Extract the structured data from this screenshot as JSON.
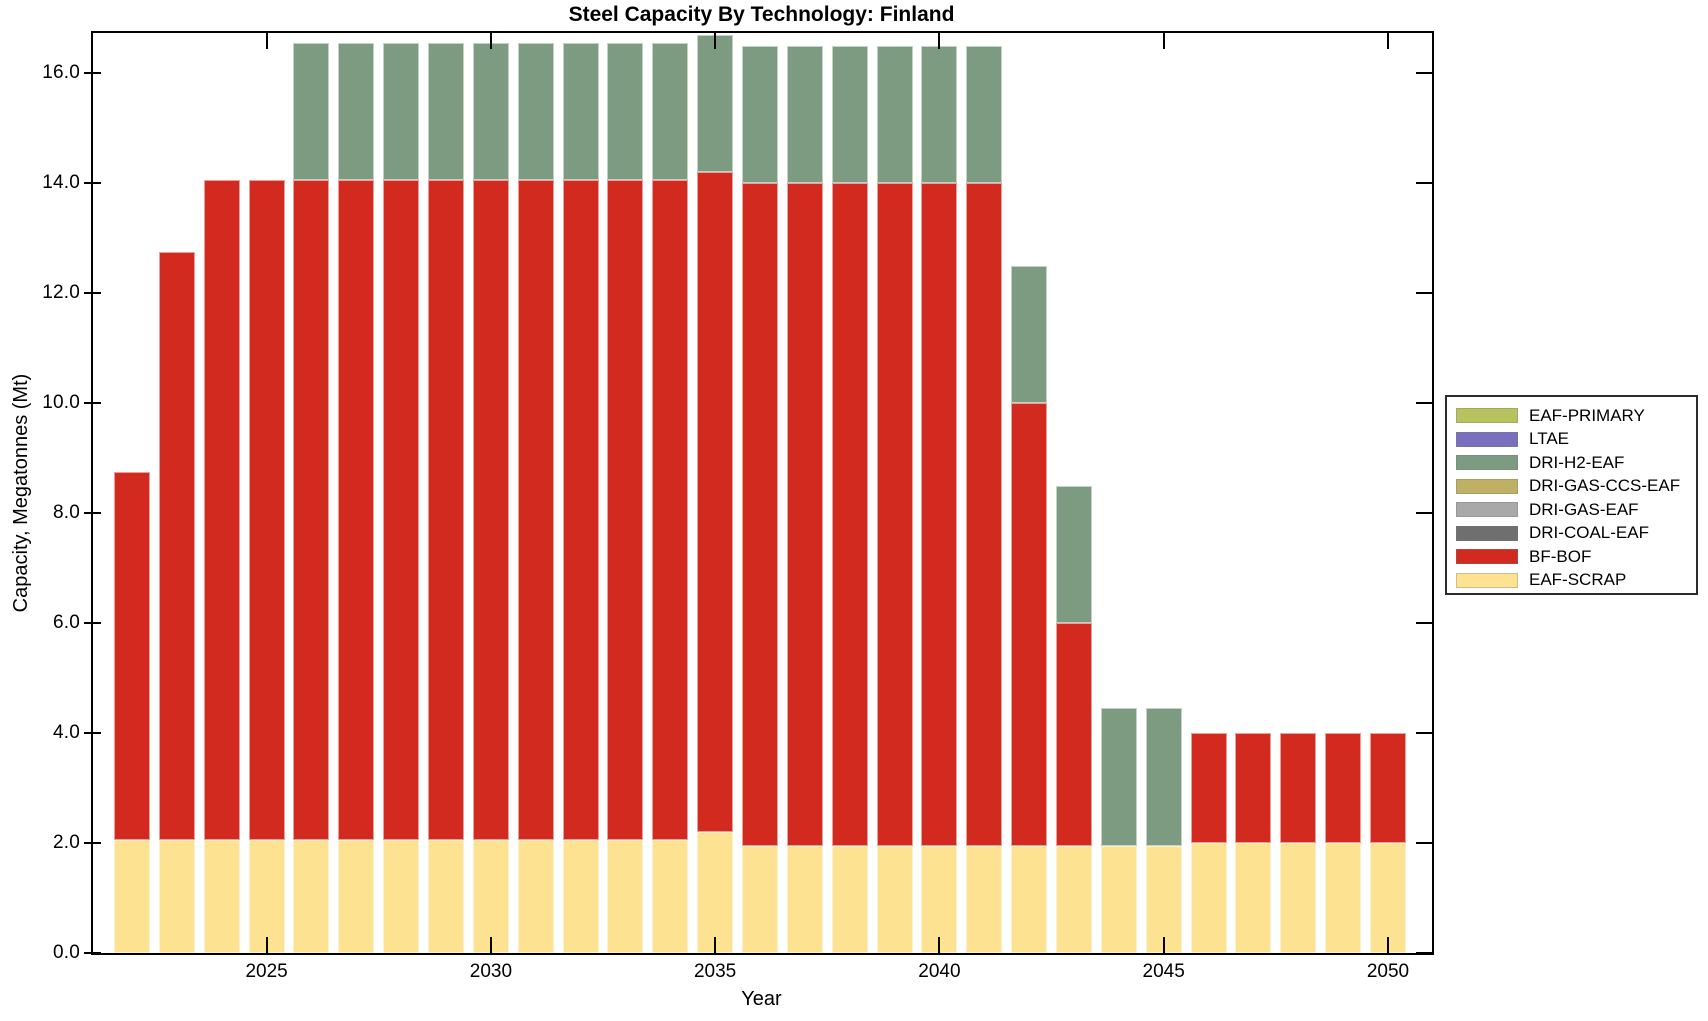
{
  "chart_data": {
    "type": "bar",
    "stacked": true,
    "title": "Steel Capacity By Technology: Finland",
    "xlabel": "Year",
    "ylabel": "Capacity, Megatonnes (Mt)",
    "x": [
      2022,
      2023,
      2024,
      2025,
      2026,
      2027,
      2028,
      2029,
      2030,
      2031,
      2032,
      2033,
      2034,
      2035,
      2036,
      2037,
      2038,
      2039,
      2040,
      2041,
      2042,
      2043,
      2044,
      2045,
      2046,
      2047,
      2048,
      2049,
      2050
    ],
    "series": [
      {
        "name": "EAF-PRIMARY",
        "color": "#b8c35f",
        "values": [
          0,
          0,
          0,
          0,
          0,
          0,
          0,
          0,
          0,
          0,
          0,
          0,
          0,
          0,
          0,
          0,
          0,
          0,
          0,
          0,
          0,
          0,
          0,
          0,
          0,
          0,
          0,
          0,
          0
        ]
      },
      {
        "name": "LTAE",
        "color": "#7a6fbd",
        "values": [
          0,
          0,
          0,
          0,
          0,
          0,
          0,
          0,
          0,
          0,
          0,
          0,
          0,
          0,
          0,
          0,
          0,
          0,
          0,
          0,
          0,
          0,
          0,
          0,
          0,
          0,
          0,
          0,
          0
        ]
      },
      {
        "name": "DRI-H2-EAF",
        "color": "#7c9b81",
        "values": [
          0,
          0,
          0,
          0,
          2.5,
          2.5,
          2.5,
          2.5,
          2.5,
          2.5,
          2.5,
          2.5,
          2.5,
          2.5,
          2.5,
          2.5,
          2.5,
          2.5,
          2.5,
          2.5,
          2.5,
          2.5,
          2.5,
          2.5,
          0,
          0,
          0,
          0,
          0
        ]
      },
      {
        "name": "DRI-GAS-CCS-EAF",
        "color": "#bfb164",
        "values": [
          0,
          0,
          0,
          0,
          0,
          0,
          0,
          0,
          0,
          0,
          0,
          0,
          0,
          0,
          0,
          0,
          0,
          0,
          0,
          0,
          0,
          0,
          0,
          0,
          0,
          0,
          0,
          0,
          0
        ]
      },
      {
        "name": "DRI-GAS-EAF",
        "color": "#a9a9a9",
        "values": [
          0,
          0,
          0,
          0,
          0,
          0,
          0,
          0,
          0,
          0,
          0,
          0,
          0,
          0,
          0,
          0,
          0,
          0,
          0,
          0,
          0,
          0,
          0,
          0,
          0,
          0,
          0,
          0,
          0
        ]
      },
      {
        "name": "DRI-COAL-EAF",
        "color": "#6f6f6f",
        "values": [
          0,
          0,
          0,
          0,
          0,
          0,
          0,
          0,
          0,
          0,
          0,
          0,
          0,
          0,
          0,
          0,
          0,
          0,
          0,
          0,
          0,
          0,
          0,
          0,
          0,
          0,
          0,
          0,
          0
        ]
      },
      {
        "name": "BF-BOF",
        "color": "#d22a1f",
        "values": [
          6.7,
          10.7,
          12,
          12,
          12,
          12,
          12,
          12,
          12,
          12,
          12,
          12,
          12,
          12,
          12.05,
          12.05,
          12.05,
          12.05,
          12.05,
          12.05,
          8.05,
          4.05,
          0,
          0,
          2,
          2,
          2,
          2,
          2
        ]
      },
      {
        "name": "EAF-SCRAP",
        "color": "#fde292",
        "values": [
          2.05,
          2.05,
          2.05,
          2.05,
          2.05,
          2.05,
          2.05,
          2.05,
          2.05,
          2.05,
          2.05,
          2.05,
          2.05,
          2.2,
          1.95,
          1.95,
          1.95,
          1.95,
          1.95,
          1.95,
          1.95,
          1.95,
          1.95,
          1.95,
          2,
          2,
          2,
          2,
          2
        ]
      }
    ],
    "x_ticks": [
      2025,
      2030,
      2035,
      2040,
      2045,
      2050
    ],
    "y_ticks": [
      0,
      2,
      4,
      6,
      8,
      10,
      12,
      14,
      16
    ],
    "y_tick_labels": [
      "0.0",
      "2.0",
      "4.0",
      "6.0",
      "8.0",
      "10.0",
      "12.0",
      "14.0",
      "16.0"
    ],
    "ylim": [
      0,
      16.73
    ],
    "grid": false,
    "legend_position": "right-outside"
  }
}
